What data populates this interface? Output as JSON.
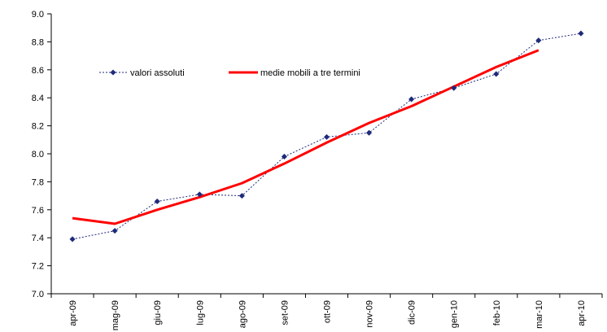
{
  "chart_data": {
    "type": "line",
    "categories": [
      "apr-09",
      "mag-09",
      "giu-09",
      "lug-09",
      "ago-09",
      "set-09",
      "ott-09",
      "nov-09",
      "dic-09",
      "gen-10",
      "feb-10",
      "mar-10",
      "apr-10"
    ],
    "ylim": [
      7.0,
      9.0
    ],
    "yticks": [
      "7.0",
      "7.2",
      "7.4",
      "7.6",
      "7.8",
      "8.0",
      "8.2",
      "8.4",
      "8.6",
      "8.8",
      "9.0"
    ],
    "grid": false,
    "legend_position": "top-left",
    "series": [
      {
        "name": "valori assoluti",
        "style": "dotted-markers",
        "color": "#1f2a7a",
        "values": [
          7.39,
          7.45,
          7.66,
          7.71,
          7.7,
          7.98,
          8.12,
          8.15,
          8.39,
          8.47,
          8.57,
          8.81,
          8.86
        ]
      },
      {
        "name": "medie mobili a tre termini",
        "style": "solid",
        "color": "#ff0000",
        "values": [
          7.54,
          7.5,
          7.6,
          7.69,
          7.79,
          7.93,
          8.08,
          8.22,
          8.34,
          8.48,
          8.62,
          8.74,
          null
        ]
      }
    ]
  }
}
